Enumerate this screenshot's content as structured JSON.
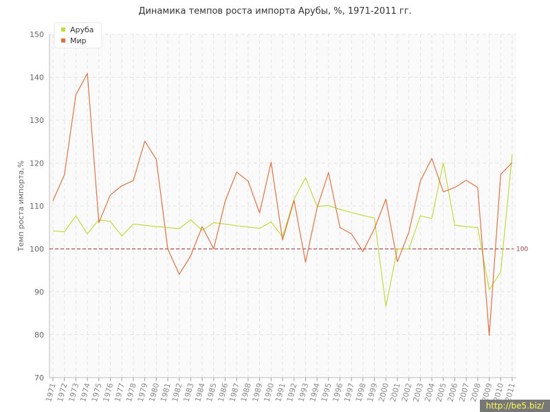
{
  "colors": {
    "aruba": "#bfdc3c",
    "world": "#e07040",
    "reference": "#a05050",
    "grid": "#e4e4e4",
    "plot_bg": "#fafafa"
  },
  "watermark": "http://be5.biz/",
  "chart_data": {
    "type": "line",
    "title": "Динамика темпов роста импорта Арубы, %, 1971-2011 гг.",
    "xlabel": "",
    "ylabel": "Темп роста импорта,%",
    "ylim": [
      70,
      150
    ],
    "yticks": [
      "70",
      "80",
      "90",
      "100",
      "110",
      "120",
      "130",
      "140",
      "150"
    ],
    "grid": true,
    "legend_position": "top-left",
    "reference_line": {
      "value": 100,
      "label": "100"
    },
    "x": [
      "1971",
      "1972",
      "1973",
      "1974",
      "1975",
      "1976",
      "1977",
      "1978",
      "1979",
      "1980",
      "1981",
      "1982",
      "1983",
      "1984",
      "1985",
      "1986",
      "1987",
      "1988",
      "1989",
      "1990",
      "1991",
      "1992",
      "1993",
      "1994",
      "1995",
      "1996",
      "1997",
      "1998",
      "1999",
      "2000",
      "2001",
      "2002",
      "2003",
      "2004",
      "2005",
      "2006",
      "2007",
      "2008",
      "2009",
      "2010",
      "2011"
    ],
    "series": [
      {
        "name": "Аруба",
        "color": "#bfdc3c",
        "values": [
          104.2,
          104.0,
          107.7,
          103.5,
          106.8,
          106.4,
          103.0,
          105.8,
          105.5,
          105.2,
          105.0,
          104.7,
          106.8,
          104.3,
          106.1,
          105.8,
          105.4,
          105.1,
          104.8,
          106.3,
          102.8,
          111.6,
          116.6,
          109.9,
          110.1,
          109.2,
          108.5,
          107.8,
          107.2,
          86.6,
          100.0,
          100.0,
          107.7,
          107.1,
          120.1,
          105.5,
          105.2,
          105.0,
          90.5,
          94.6,
          122.1
        ]
      },
      {
        "name": "Мир",
        "color": "#e07040",
        "values": [
          111.2,
          117.3,
          135.9,
          140.9,
          106.1,
          112.6,
          114.7,
          115.9,
          125.1,
          120.9,
          100.0,
          94.1,
          98.4,
          105.2,
          100.0,
          111.1,
          117.9,
          115.8,
          108.4,
          120.2,
          102.1,
          111.3,
          96.9,
          109.5,
          117.8,
          105.0,
          103.5,
          99.4,
          104.7,
          111.6,
          97.0,
          103.9,
          115.8,
          121.1,
          113.3,
          114.3,
          116.0,
          114.3,
          79.8,
          117.4,
          120.1
        ]
      }
    ]
  }
}
